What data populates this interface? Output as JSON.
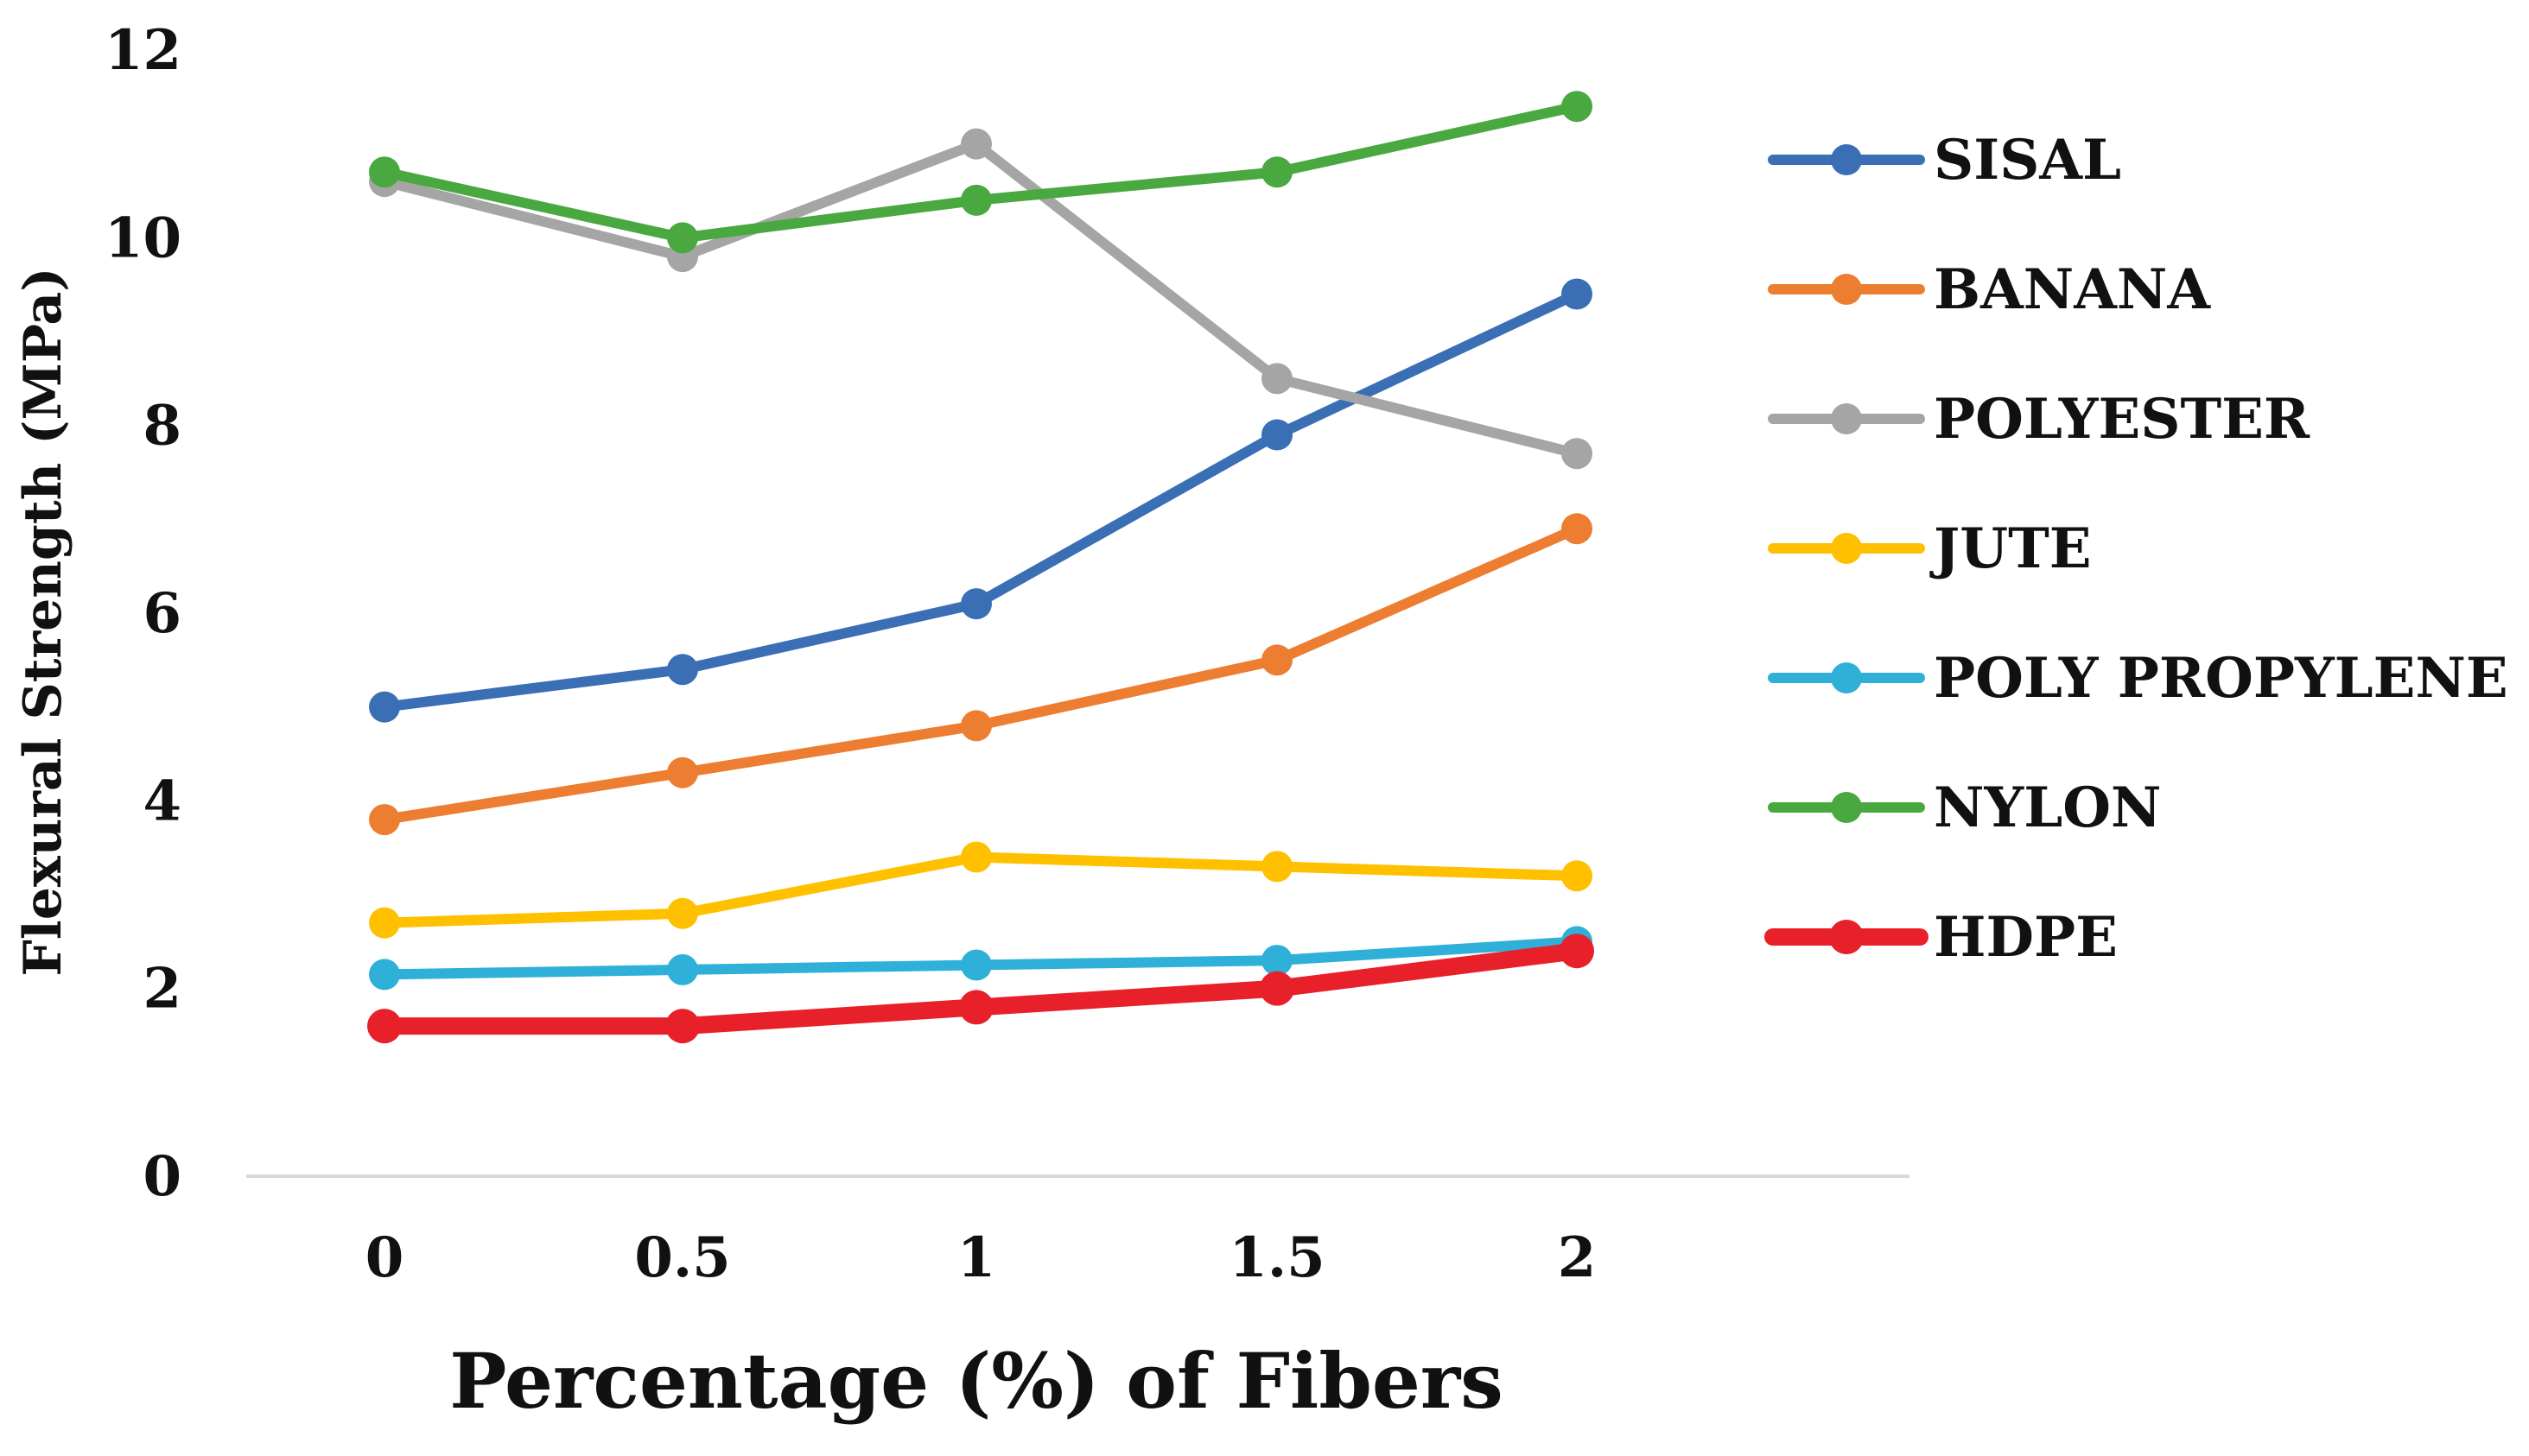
{
  "chart_data": {
    "type": "line",
    "title": "",
    "xlabel": "Percentage (%) of Fibers",
    "ylabel": "Flexural Strength (MPa)",
    "x": [
      "0",
      "0.5",
      "1",
      "1.5",
      "2"
    ],
    "ylim": [
      0,
      12
    ],
    "yticks": [
      "0",
      "2",
      "4",
      "6",
      "8",
      "10",
      "12"
    ],
    "grid": false,
    "legend_position": "right",
    "series": [
      {
        "name": "SISAL",
        "color": "#3a6fb5",
        "values": [
          5.0,
          5.4,
          6.1,
          7.9,
          9.4
        ]
      },
      {
        "name": "BANANA",
        "color": "#ed7d31",
        "values": [
          3.8,
          4.3,
          4.8,
          5.5,
          6.9
        ]
      },
      {
        "name": "POLYESTER",
        "color": "#a5a5a5",
        "values": [
          10.6,
          9.8,
          11.0,
          8.5,
          7.7
        ]
      },
      {
        "name": "JUTE",
        "color": "#ffc000",
        "values": [
          2.7,
          2.8,
          3.4,
          3.3,
          3.2
        ]
      },
      {
        "name": "POLY PROPYLENE",
        "color": "#2fb0d8",
        "values": [
          2.15,
          2.2,
          2.25,
          2.3,
          2.5
        ]
      },
      {
        "name": "NYLON",
        "color": "#4aa840",
        "values": [
          10.7,
          10.0,
          10.4,
          10.7,
          11.4
        ]
      },
      {
        "name": "HDPE",
        "color": "#e8202a",
        "values": [
          1.6,
          1.6,
          1.8,
          2.0,
          2.4
        ]
      }
    ]
  }
}
